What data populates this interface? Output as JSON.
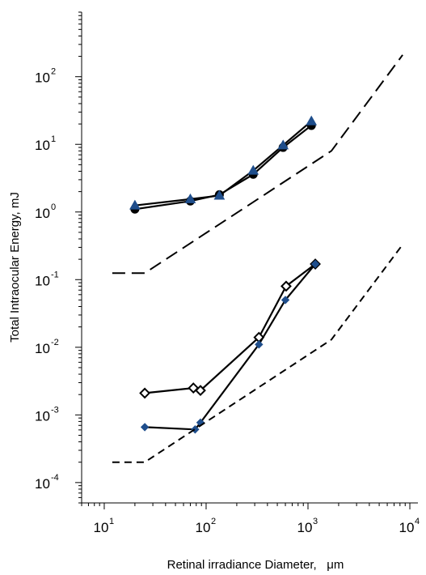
{
  "chart_data": {
    "type": "line",
    "xlabel": "Retinal irradiance Diameter,   μm",
    "ylabel": "Total Intraocular Energy, mJ",
    "xscale": "log",
    "yscale": "log",
    "xlim": [
      6,
      12000
    ],
    "ylim": [
      5e-05,
      900
    ],
    "grid": false,
    "xticks": [
      {
        "base": "10",
        "exp": "1",
        "value": 10
      },
      {
        "base": "10",
        "exp": "2",
        "value": 100
      },
      {
        "base": "10",
        "exp": "3",
        "value": 1000
      },
      {
        "base": "10",
        "exp": "4",
        "value": 10000
      }
    ],
    "yticks": [
      {
        "base": "10",
        "exp": "2",
        "value": 100
      },
      {
        "base": "10",
        "exp": "1",
        "value": 10
      },
      {
        "base": "10",
        "exp": "0",
        "value": 1
      },
      {
        "base": "10",
        "exp": "-1",
        "value": 0.1
      },
      {
        "base": "10",
        "exp": "-2",
        "value": 0.01
      },
      {
        "base": "10",
        "exp": "-3",
        "value": 0.001
      },
      {
        "base": "10",
        "exp": "-4",
        "value": 0.0001
      }
    ],
    "series": [
      {
        "marker": "circle",
        "color": "#000000",
        "line": "solid",
        "points": [
          [
            20,
            1.1
          ],
          [
            70,
            1.45
          ],
          [
            135,
            1.8
          ],
          [
            290,
            3.6
          ],
          [
            570,
            9
          ],
          [
            1080,
            19
          ]
        ]
      },
      {
        "marker": "triangle",
        "color": "#1f4e8c",
        "line": "solid",
        "points": [
          [
            20,
            1.25
          ],
          [
            70,
            1.55
          ],
          [
            135,
            1.75
          ],
          [
            290,
            4.1
          ],
          [
            570,
            9.7
          ],
          [
            1080,
            22
          ]
        ]
      },
      {
        "marker": "open-diamond",
        "color": "#000000",
        "line": "solid",
        "points": [
          [
            25,
            0.0021
          ],
          [
            75,
            0.0025
          ],
          [
            88,
            0.0023
          ],
          [
            330,
            0.014
          ],
          [
            610,
            0.08
          ],
          [
            1180,
            0.17
          ]
        ]
      },
      {
        "marker": "filled-diamond",
        "color": "#1f4e8c",
        "line": "solid",
        "points": [
          [
            25,
            0.00066
          ],
          [
            78,
            0.00061
          ],
          [
            88,
            0.00077
          ],
          [
            330,
            0.011
          ],
          [
            600,
            0.05
          ],
          [
            1180,
            0.17
          ]
        ]
      },
      {
        "marker": "none",
        "color": "#000000",
        "line": "long-dash",
        "points": [
          [
            12,
            0.125
          ],
          [
            25,
            0.125
          ],
          [
            1700,
            8
          ],
          [
            8500,
            210
          ]
        ]
      },
      {
        "marker": "none",
        "color": "#000000",
        "line": "short-dash",
        "points": [
          [
            12,
            0.0002
          ],
          [
            25,
            0.0002
          ],
          [
            1700,
            0.013
          ],
          [
            8500,
            0.33
          ]
        ]
      }
    ]
  }
}
